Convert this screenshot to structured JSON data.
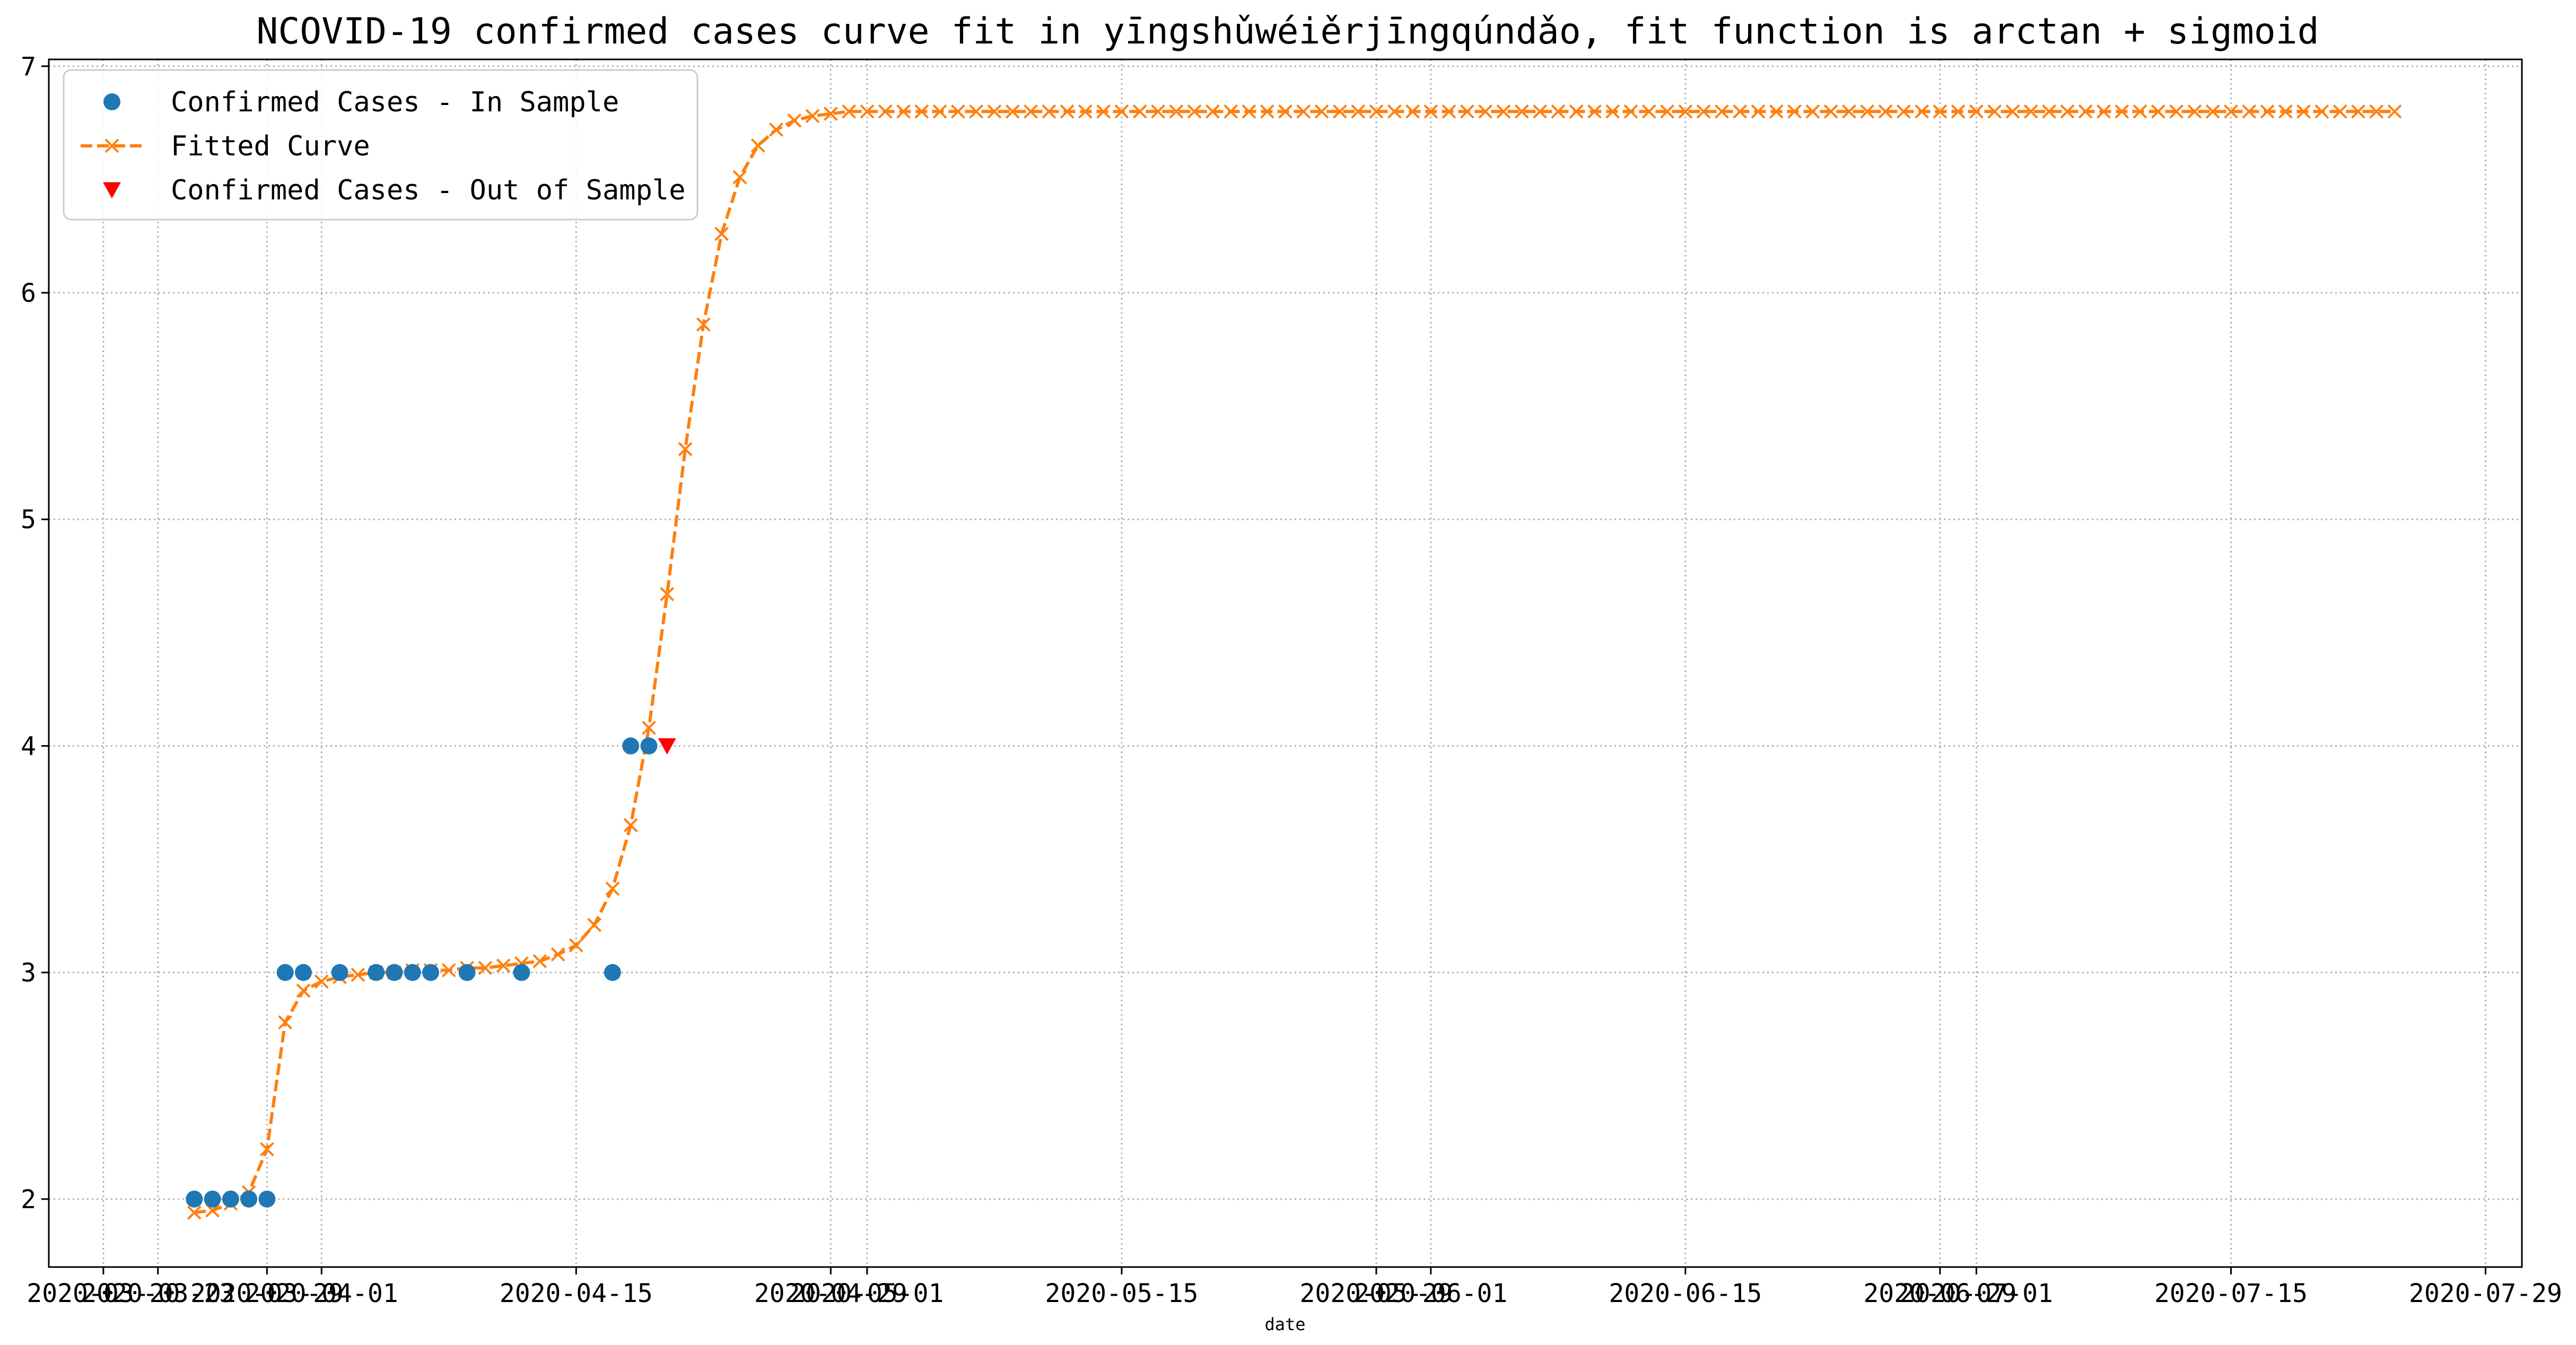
{
  "chart_data": {
    "type": "line",
    "title": "NCOVID-19 confirmed cases curve fit in yīngshǔwéiěrjīngqúndǎo, fit function is arctan + sigmoid",
    "xlabel": "date",
    "ylabel": "",
    "xlim": [
      "2020-03-17",
      "2020-07-31"
    ],
    "ylim": [
      1.7,
      7.03
    ],
    "grid": true,
    "grid_style": "dotted",
    "legend_position": "top-left",
    "x_ticks": [
      {
        "date": "2020-03-20",
        "label": "2020-03-20"
      },
      {
        "date": "2020-03-23",
        "label": "2020-03-23"
      },
      {
        "date": "2020-03-29",
        "label": "2020-03-29"
      },
      {
        "date": "2020-04-01",
        "label": "2020-04-01"
      },
      {
        "date": "2020-04-15",
        "label": "2020-04-15"
      },
      {
        "date": "2020-04-29",
        "label": "2020-04-29"
      },
      {
        "date": "2020-05-01",
        "label": "2020-05-01"
      },
      {
        "date": "2020-05-15",
        "label": "2020-05-15"
      },
      {
        "date": "2020-05-29",
        "label": "2020-05-29"
      },
      {
        "date": "2020-06-01",
        "label": "2020-06-01"
      },
      {
        "date": "2020-06-15",
        "label": "2020-06-15"
      },
      {
        "date": "2020-06-29",
        "label": "2020-06-29"
      },
      {
        "date": "2020-07-01",
        "label": "2020-07-01"
      },
      {
        "date": "2020-07-15",
        "label": "2020-07-15"
      },
      {
        "date": "2020-07-29",
        "label": "2020-07-29"
      }
    ],
    "y_ticks": [
      2,
      3,
      4,
      5,
      6,
      7
    ],
    "series": [
      {
        "name": "Confirmed Cases - In Sample",
        "kind": "scatter",
        "marker": "circle",
        "color": "#1f77b4",
        "points": [
          {
            "x": "2020-03-25",
            "y": 2
          },
          {
            "x": "2020-03-26",
            "y": 2
          },
          {
            "x": "2020-03-27",
            "y": 2
          },
          {
            "x": "2020-03-28",
            "y": 2
          },
          {
            "x": "2020-03-29",
            "y": 2
          },
          {
            "x": "2020-03-30",
            "y": 3
          },
          {
            "x": "2020-03-31",
            "y": 3
          },
          {
            "x": "2020-04-02",
            "y": 3
          },
          {
            "x": "2020-04-04",
            "y": 3
          },
          {
            "x": "2020-04-05",
            "y": 3
          },
          {
            "x": "2020-04-06",
            "y": 3
          },
          {
            "x": "2020-04-07",
            "y": 3
          },
          {
            "x": "2020-04-09",
            "y": 3
          },
          {
            "x": "2020-04-12",
            "y": 3
          },
          {
            "x": "2020-04-17",
            "y": 3
          },
          {
            "x": "2020-04-18",
            "y": 4
          },
          {
            "x": "2020-04-19",
            "y": 4
          }
        ]
      },
      {
        "name": "Fitted Curve",
        "kind": "line",
        "marker": "x",
        "linestyle": "dashed",
        "color": "#ff7f0e",
        "x_start": "2020-03-25",
        "values": [
          1.94,
          1.95,
          1.98,
          2.03,
          2.22,
          2.78,
          2.92,
          2.96,
          2.98,
          2.99,
          3.0,
          3.0,
          3.01,
          3.01,
          3.01,
          3.02,
          3.02,
          3.03,
          3.04,
          3.05,
          3.08,
          3.12,
          3.21,
          3.37,
          3.65,
          4.08,
          4.67,
          5.31,
          5.86,
          6.26,
          6.51,
          6.65,
          6.72,
          6.76,
          6.78,
          6.79,
          6.8,
          6.8,
          6.8,
          6.8,
          6.8,
          6.8,
          6.8,
          6.8,
          6.8,
          6.8,
          6.8,
          6.8,
          6.8,
          6.8,
          6.8,
          6.8,
          6.8,
          6.8,
          6.8,
          6.8,
          6.8,
          6.8,
          6.8,
          6.8,
          6.8,
          6.8,
          6.8,
          6.8,
          6.8,
          6.8,
          6.8,
          6.8,
          6.8,
          6.8,
          6.8,
          6.8,
          6.8,
          6.8,
          6.8,
          6.8,
          6.8,
          6.8,
          6.8,
          6.8,
          6.8,
          6.8,
          6.8,
          6.8,
          6.8,
          6.8,
          6.8,
          6.8,
          6.8,
          6.8,
          6.8,
          6.8,
          6.8,
          6.8,
          6.8,
          6.8,
          6.8,
          6.8,
          6.8,
          6.8,
          6.8,
          6.8,
          6.8,
          6.8,
          6.8,
          6.8,
          6.8,
          6.8,
          6.8,
          6.8,
          6.8,
          6.8,
          6.8,
          6.8,
          6.8,
          6.8,
          6.8,
          6.8,
          6.8,
          6.8,
          6.8,
          6.8
        ]
      },
      {
        "name": "Confirmed Cases - Out of Sample",
        "kind": "scatter",
        "marker": "triangle-down",
        "color": "#ff0000",
        "points": [
          {
            "x": "2020-04-20",
            "y": 4
          }
        ]
      }
    ]
  }
}
